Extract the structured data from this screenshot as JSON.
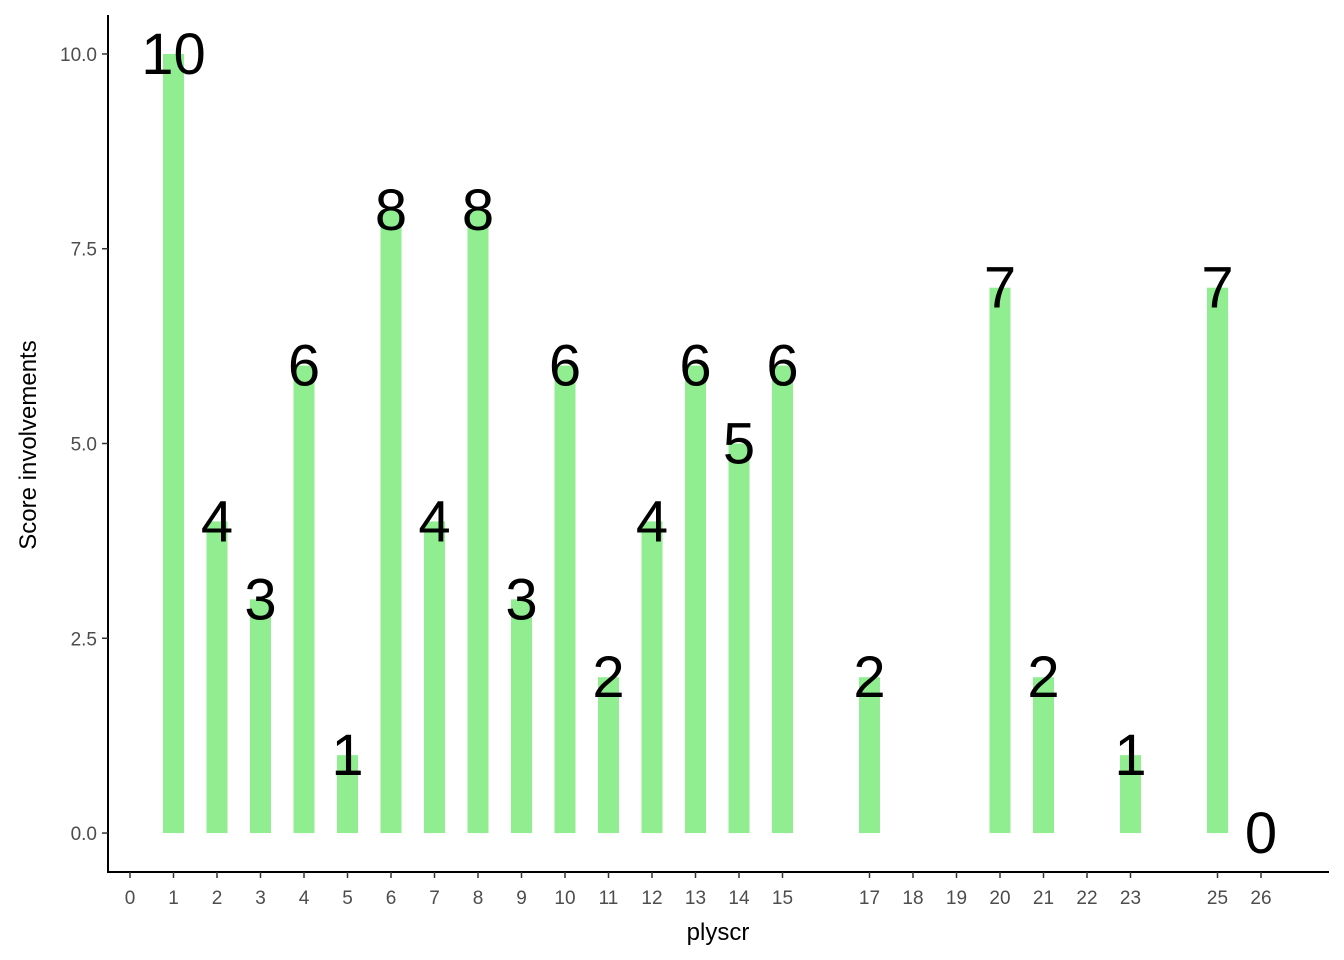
{
  "chart_data": {
    "type": "bar",
    "xlabel": "plyscr",
    "ylabel": "Score involvements",
    "x_ticks": [
      0,
      1,
      2,
      3,
      4,
      5,
      6,
      7,
      8,
      9,
      10,
      11,
      12,
      13,
      14,
      15,
      17,
      18,
      19,
      20,
      21,
      22,
      23,
      25,
      26
    ],
    "x": [
      1,
      2,
      3,
      4,
      5,
      6,
      7,
      8,
      9,
      10,
      11,
      12,
      13,
      14,
      15,
      17,
      20,
      21,
      23,
      25,
      26
    ],
    "values": [
      10,
      4,
      3,
      6,
      1,
      8,
      4,
      8,
      3,
      6,
      2,
      4,
      6,
      5,
      6,
      2,
      7,
      2,
      1,
      7,
      0
    ],
    "y_ticks": [
      "0.0",
      "2.5",
      "5.0",
      "7.5",
      "10.0"
    ],
    "ylim": [
      -0.5,
      10.5
    ],
    "bar_color": "#90EE90",
    "grid": false,
    "legend": "none"
  }
}
